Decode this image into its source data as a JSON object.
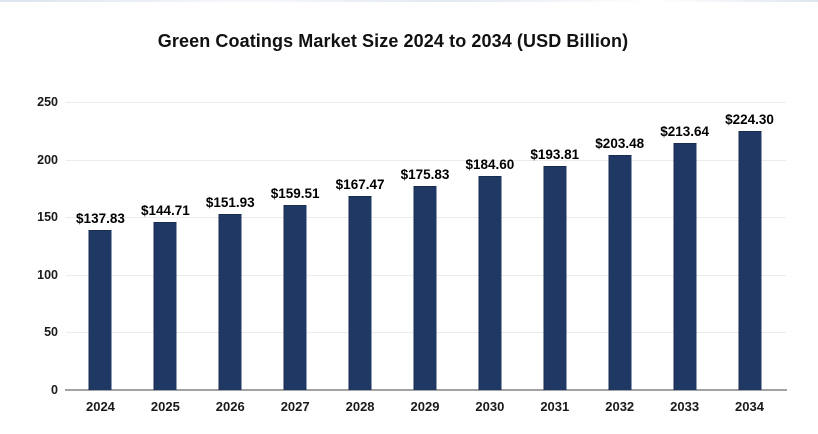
{
  "chart_data": {
    "type": "bar",
    "title": "Green Coatings Market Size 2024 to 2034 (USD Billion)",
    "categories": [
      "2024",
      "2025",
      "2026",
      "2027",
      "2028",
      "2029",
      "2030",
      "2031",
      "2032",
      "2033",
      "2034"
    ],
    "values": [
      137.83,
      144.71,
      151.93,
      159.51,
      167.47,
      175.83,
      184.6,
      193.81,
      203.48,
      213.64,
      224.3
    ],
    "data_labels": [
      "$137.83",
      "$144.71",
      "$151.93",
      "$159.51",
      "$167.47",
      "$175.83",
      "$184.60",
      "$193.81",
      "$203.48",
      "$213.64",
      "$224.30"
    ],
    "xlabel": "",
    "ylabel": "",
    "units": "USD Billion",
    "ylim": [
      0,
      250
    ],
    "ytick_step": 50,
    "ytick_labels": [
      "0",
      "50",
      "100",
      "150",
      "200",
      "250"
    ],
    "grid": true,
    "legend": "none"
  },
  "colors": {
    "bar": "#1f3864",
    "bar_border": "#182c50",
    "gridline": "#ebebeb",
    "axis_line": "#a3a3a3",
    "text": "#1a1a1a",
    "background": "#ffffff"
  }
}
